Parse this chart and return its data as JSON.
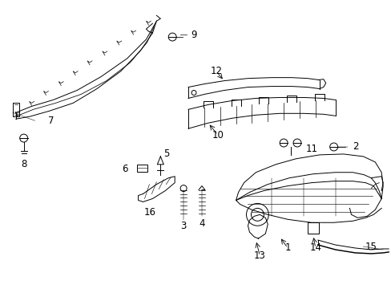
{
  "background_color": "#ffffff",
  "line_color": "#000000",
  "fig_width": 4.89,
  "fig_height": 3.6,
  "dpi": 100,
  "annotation_fontsize": 8.5
}
